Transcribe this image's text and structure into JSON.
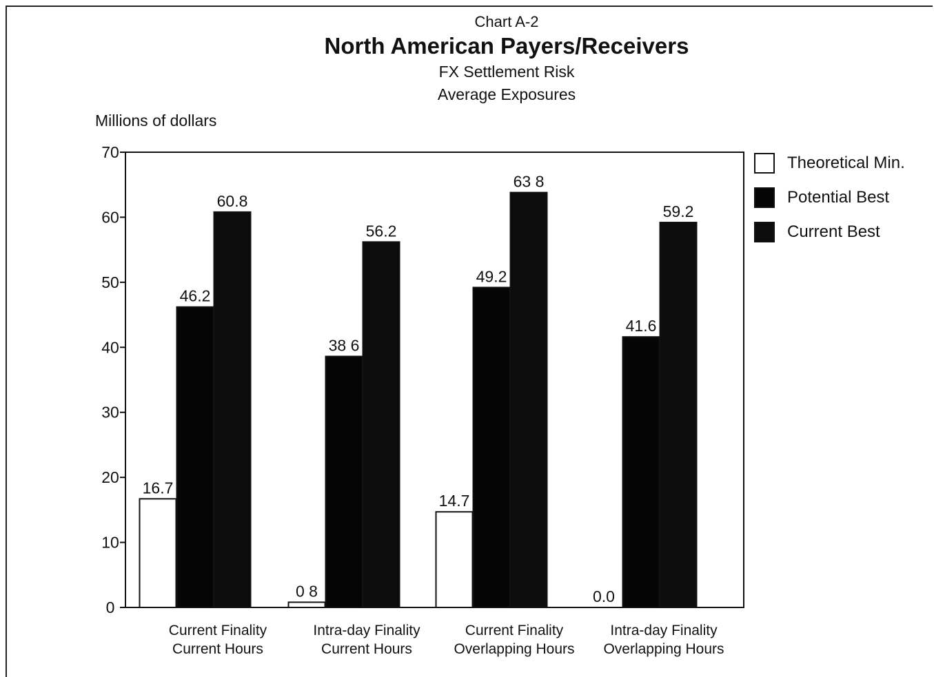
{
  "header": {
    "chart_label": "Chart A-2",
    "title": "North American Payers/Receivers",
    "subtitle_1": "FX Settlement Risk",
    "subtitle_2": "Average Exposures"
  },
  "colors": {
    "theoretical_min": "#ffffff",
    "potential_best": "#050505",
    "current_best": "#0c0c0c",
    "axis": "#111111"
  },
  "chart_data": {
    "type": "bar",
    "title": "North American Payers/Receivers",
    "subtitle": "FX Settlement Risk Average Exposures",
    "ylabel": "Millions of dollars",
    "xlabel": "",
    "ylim": [
      0,
      70
    ],
    "yticks": [
      0,
      10,
      20,
      30,
      40,
      50,
      60,
      70
    ],
    "grid": false,
    "legend_position": "right",
    "categories": [
      [
        "Current Finality",
        "Current Hours"
      ],
      [
        "Intra-day Finality",
        "Current Hours"
      ],
      [
        "Current Finality",
        "Overlapping Hours"
      ],
      [
        "Intra-day Finality",
        "Overlapping Hours"
      ]
    ],
    "series": [
      {
        "name": "Theoretical Min.",
        "values": [
          16.7,
          0.8,
          14.7,
          0.0
        ],
        "labels": [
          "16.7",
          "0 8",
          "14.7",
          "0.0"
        ],
        "color": "#ffffff"
      },
      {
        "name": "Potential Best",
        "values": [
          46.2,
          38.6,
          49.2,
          41.6
        ],
        "labels": [
          "46.2",
          "38 6",
          "49.2",
          "41.6"
        ],
        "color": "#050505"
      },
      {
        "name": "Current Best",
        "values": [
          60.8,
          56.2,
          63.8,
          59.2
        ],
        "labels": [
          "60.8",
          "56.2",
          "63 8",
          "59.2"
        ],
        "color": "#0c0c0c"
      }
    ]
  }
}
